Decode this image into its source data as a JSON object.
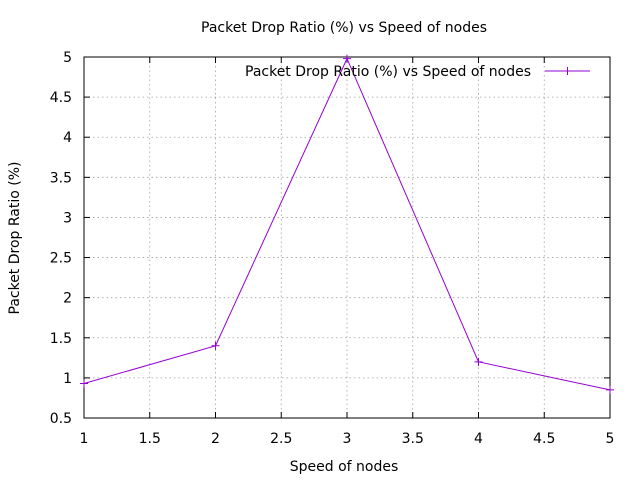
{
  "chart_data": {
    "type": "line",
    "title": "Packet Drop Ratio (%) vs Speed of nodes",
    "xlabel": "Speed of nodes",
    "ylabel": "Packet Drop Ratio (%)",
    "xlim": [
      1,
      5
    ],
    "ylim": [
      0.5,
      5
    ],
    "xticks": [
      1,
      1.5,
      2,
      2.5,
      3,
      3.5,
      4,
      4.5,
      5
    ],
    "yticks": [
      0.5,
      1,
      1.5,
      2,
      2.5,
      3,
      3.5,
      4,
      4.5,
      5
    ],
    "xtick_labels": [
      "1",
      "1.5",
      "2",
      "2.5",
      "3",
      "3.5",
      "4",
      "4.5",
      "5"
    ],
    "ytick_labels": [
      "0.5",
      "1",
      "1.5",
      "2",
      "2.5",
      "3",
      "3.5",
      "4",
      "4.5",
      "5"
    ],
    "grid": true,
    "legend_position": "top-right",
    "series": [
      {
        "name": "Packet Drop Ratio (%) vs Speed of nodes",
        "color": "#9400d3",
        "marker": "plus",
        "x": [
          1,
          2,
          3,
          4,
          5
        ],
        "y": [
          0.93,
          1.4,
          4.98,
          1.2,
          0.85
        ]
      }
    ]
  }
}
